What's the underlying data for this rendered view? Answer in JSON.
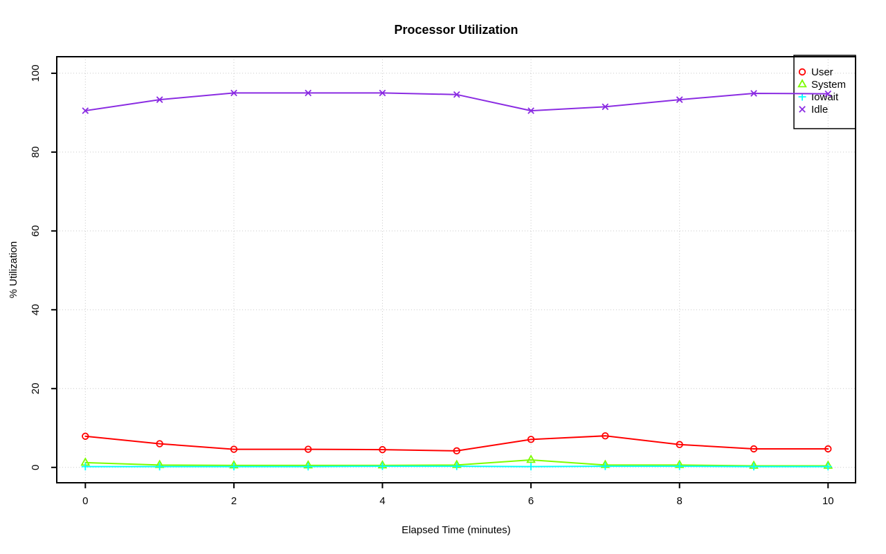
{
  "chart_data": {
    "type": "line",
    "title": "Processor Utilization",
    "xlabel": "Elapsed Time (minutes)",
    "ylabel": "% Utilization",
    "x": [
      0,
      1,
      2,
      3,
      4,
      5,
      6,
      7,
      8,
      9,
      10
    ],
    "series": [
      {
        "name": "User",
        "color": "#ff0000",
        "marker": "circle",
        "values": [
          7.9,
          6.0,
          4.6,
          4.6,
          4.5,
          4.2,
          7.1,
          8.0,
          5.8,
          4.7,
          4.7
        ]
      },
      {
        "name": "System",
        "color": "#7cfc00",
        "marker": "triangle",
        "values": [
          1.2,
          0.6,
          0.5,
          0.5,
          0.5,
          0.6,
          1.9,
          0.6,
          0.6,
          0.4,
          0.4
        ]
      },
      {
        "name": "Iowait",
        "color": "#00ffff",
        "marker": "plus",
        "values": [
          0.2,
          0.2,
          0.2,
          0.2,
          0.3,
          0.3,
          0.2,
          0.3,
          0.3,
          0.2,
          0.2
        ]
      },
      {
        "name": "Idle",
        "color": "#8a2be2",
        "marker": "x",
        "values": [
          90.5,
          93.3,
          95.0,
          95.0,
          95.0,
          94.6,
          90.5,
          91.5,
          93.3,
          94.9,
          94.8
        ]
      }
    ],
    "xticks": [
      0,
      2,
      4,
      6,
      8,
      10
    ],
    "yticks": [
      0,
      20,
      40,
      60,
      80,
      100
    ],
    "xtick_labels": [
      "0",
      "2",
      "4",
      "6",
      "8",
      "10"
    ],
    "ytick_labels": [
      "0",
      "20",
      "40",
      "60",
      "80",
      "100"
    ],
    "xlim": [
      -0.385,
      10.37
    ],
    "ylim": [
      -3.9,
      104.2
    ],
    "grid": "dotted",
    "grid_color": "#c8c8c8",
    "axis_color": "#000000",
    "background_color": "#ffffff",
    "legend": {
      "position": "top-right",
      "entries": [
        "User",
        "System",
        "Iowait",
        "Idle"
      ]
    }
  }
}
